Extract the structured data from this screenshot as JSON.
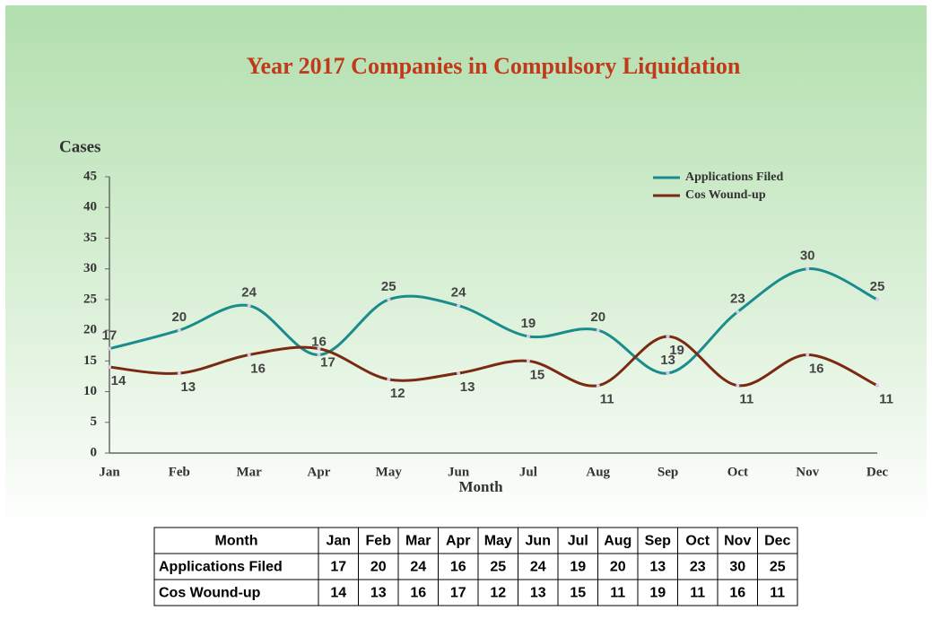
{
  "chart_data": {
    "type": "line",
    "title": "Year 2017 Companies in Compulsory Liquidation",
    "y_label": "Cases",
    "x_label": "Month",
    "categories": [
      "Jan",
      "Feb",
      "Mar",
      "Apr",
      "May",
      "Jun",
      "Jul",
      "Aug",
      "Sep",
      "Oct",
      "Nov",
      "Dec"
    ],
    "series": [
      {
        "name": "Applications Filed",
        "color": "#1b8c8c",
        "values": [
          17,
          20,
          24,
          16,
          25,
          24,
          19,
          20,
          13,
          23,
          30,
          25
        ]
      },
      {
        "name": "Cos Wound-up",
        "color": "#7a2a12",
        "values": [
          14,
          13,
          16,
          17,
          12,
          13,
          15,
          11,
          19,
          11,
          16,
          11
        ]
      }
    ],
    "ylim": [
      0,
      45
    ],
    "yticks": [
      0,
      5,
      10,
      15,
      20,
      25,
      30,
      35,
      40,
      45
    ],
    "grid": false,
    "legend": "top-right",
    "smooth": true,
    "data_table": true
  }
}
